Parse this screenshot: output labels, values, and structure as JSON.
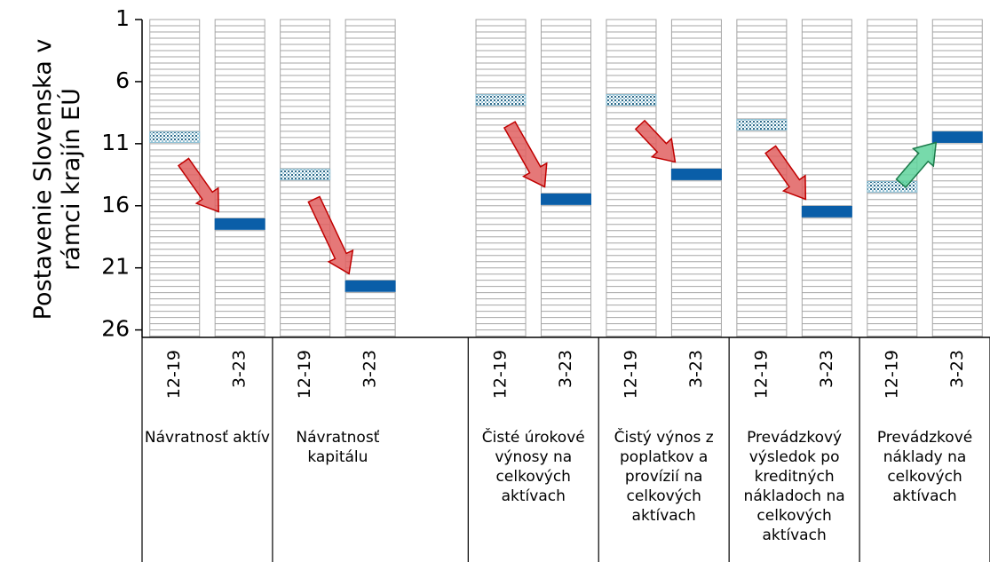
{
  "chart_data": {
    "type": "rank",
    "ylabel": "Postavenie Slovenska v rámci krajín EÚ",
    "ylim": [
      1,
      26.6
    ],
    "inverted": true,
    "yticks": [
      1,
      6,
      11,
      16,
      21,
      26
    ],
    "period_colors": [
      "#8fc0d4",
      "#0a5ea8"
    ],
    "improve_color": "#5fd39c",
    "worsen_color": "#e06060",
    "groups": [
      {
        "name": "Návratnosť aktív",
        "categories": [
          "12-19",
          "3-23"
        ],
        "values": [
          10,
          17
        ]
      },
      {
        "name": "Návratnosť kapitálu",
        "categories": [
          "12-19",
          "3-23",
          null
        ],
        "values": [
          13,
          22,
          null
        ]
      },
      {
        "name": "Čisté úrokové výnosy na celkových aktívach",
        "categories": [
          "12-19",
          "3-23"
        ],
        "values": [
          7,
          15
        ]
      },
      {
        "name": "Čistý výnos z poplatkov a provízií na celkových aktívach",
        "categories": [
          "12-19",
          "3-23"
        ],
        "values": [
          7,
          13
        ]
      },
      {
        "name": "Prevádzkový výsledok po kreditných nákladoch na celkových aktívach",
        "categories": [
          "12-19",
          "3-23"
        ],
        "values": [
          9,
          16
        ]
      },
      {
        "name": "Prevádzkové náklady na celkových aktívach",
        "categories": [
          "12-19",
          "3-23"
        ],
        "values": [
          14,
          10
        ]
      }
    ]
  }
}
